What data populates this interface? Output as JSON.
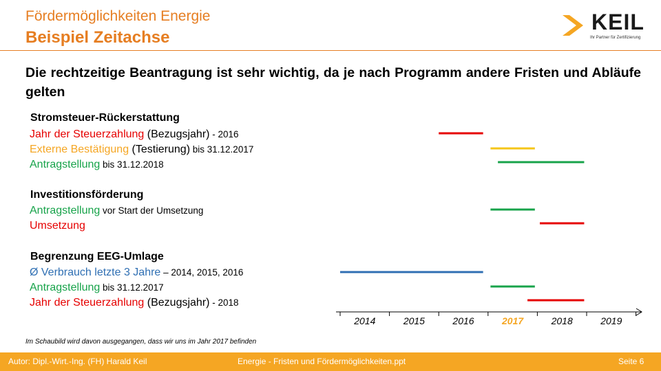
{
  "header": {
    "line1": "Fördermöglichkeiten Energie",
    "line2": "Beispiel Zeitachse"
  },
  "logo": {
    "word": "KEIL",
    "tagline": "Ihr Partner für Zertifizierung",
    "accent_color": "#f5a623"
  },
  "intro": "Die rechtzeitige Beantragung ist sehr wichtig, da je nach Programm andere Fristen und Abläufe gelten",
  "sections": {
    "s1": {
      "title": "Stromsteuer-Rückerstattung",
      "r1": {
        "a": "Jahr der Steuerzahlung",
        "b": " (Bezugsjahr)",
        "c": " - 2016"
      },
      "r2": {
        "a": "Externe Bestätigung",
        "b": " (Testierung)",
        "c": " bis 31.12.2017"
      },
      "r3": {
        "a": "Antragstellung",
        "c": " bis 31.12.2018"
      }
    },
    "s2": {
      "title": "Investitionsförderung",
      "r1": {
        "a": "Antragstellung",
        "c": " vor Start der Umsetzung"
      },
      "r2": {
        "a": "Umsetzung"
      }
    },
    "s3": {
      "title": "Begrenzung EEG-Umlage",
      "r1": {
        "a": "Ø Verbrauch letzte 3 Jahre",
        "c": " – 2014, 2015, 2016"
      },
      "r2": {
        "a": "Antragstellung",
        "c": " bis 31.12.2017"
      },
      "r3": {
        "a": "Jahr der Steuerzahlung",
        "b": " (Bezugsjahr)",
        "c": " - 2018"
      }
    }
  },
  "timeline": {
    "years": [
      "2014",
      "2015",
      "2016",
      "2017",
      "2018",
      "2019"
    ],
    "current_year": "2017",
    "colors": {
      "red": "#e60000",
      "orange": "#f5c518",
      "green": "#17a34a",
      "blue": "#2f6fb3",
      "highlight": "#f5a623"
    },
    "bars": [
      {
        "row": "s1.r1",
        "color": "red",
        "start": 2016.0,
        "end": 2016.9
      },
      {
        "row": "s1.r2",
        "color": "orange",
        "start": 2017.05,
        "end": 2017.95
      },
      {
        "row": "s1.r3",
        "color": "green",
        "start": 2017.2,
        "end": 2018.95
      },
      {
        "row": "s2.r1",
        "color": "green",
        "start": 2017.05,
        "end": 2017.95
      },
      {
        "row": "s2.r2",
        "color": "red",
        "start": 2018.05,
        "end": 2018.95
      },
      {
        "row": "s3.r1",
        "color": "blue",
        "start": 2014.0,
        "end": 2016.9
      },
      {
        "row": "s3.r2",
        "color": "green",
        "start": 2017.05,
        "end": 2017.95
      },
      {
        "row": "s3.r3",
        "color": "red",
        "start": 2017.8,
        "end": 2018.95
      }
    ]
  },
  "note": "Im Schaubild wird davon ausgegangen, dass wir uns im Jahr 2017 befinden",
  "footer": {
    "author": "Autor: Dipl.-Wirt.-Ing. (FH) Harald Keil",
    "file": "Energie - Fristen und Fördermöglichkeiten.ppt",
    "page": "Seite 6"
  }
}
